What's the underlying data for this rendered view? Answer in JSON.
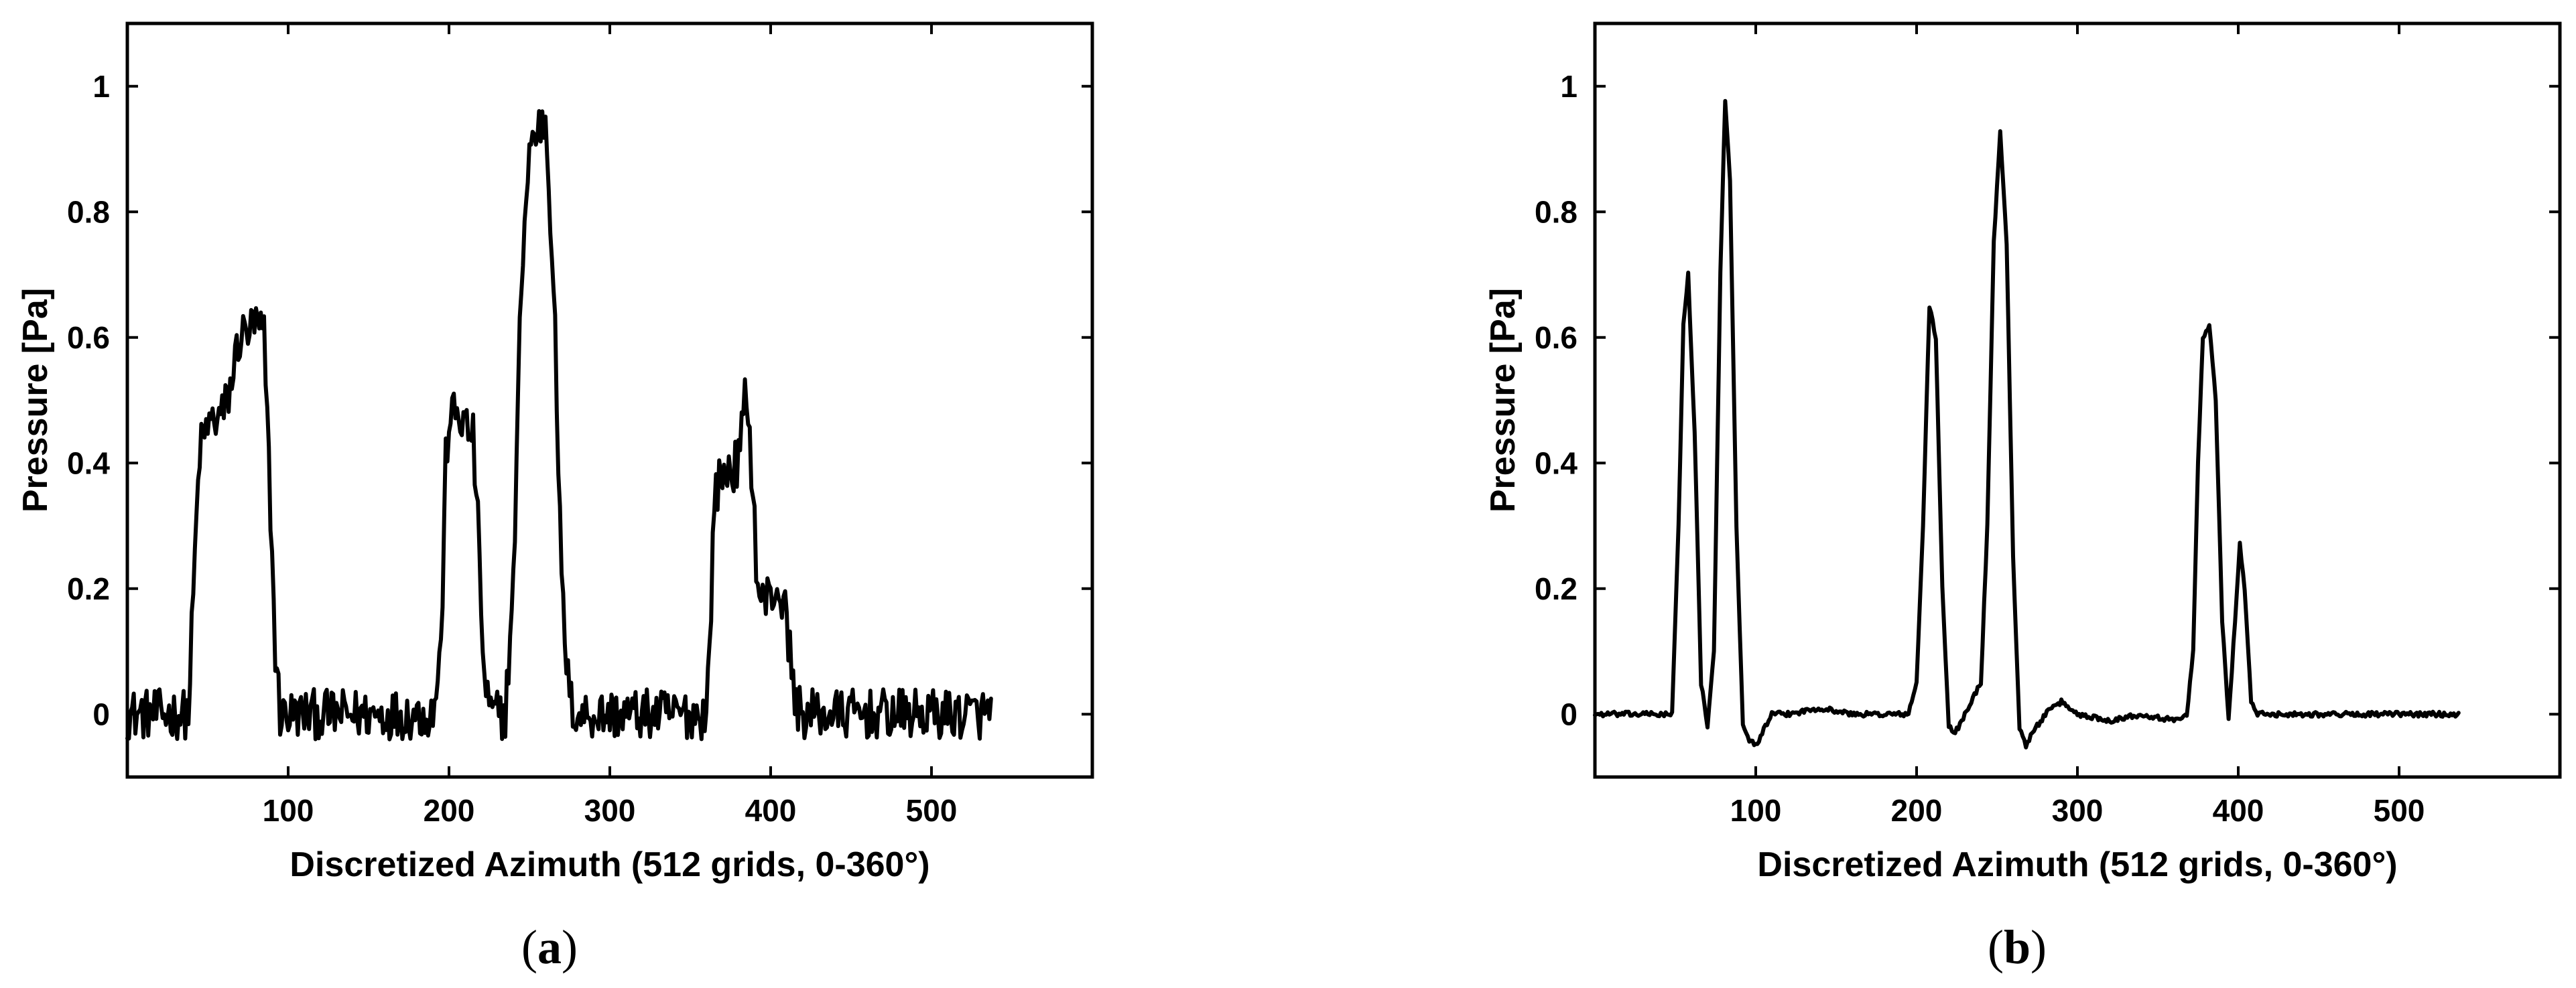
{
  "chart_data": [
    {
      "type": "line",
      "panel": "a",
      "xlabel": "Discretized Azimuth (512 grids, 0-360°)",
      "ylabel": "Pressure [Pa]",
      "xlim": [
        0,
        600
      ],
      "ylim": [
        -0.1,
        1.1
      ],
      "xticks": [
        100,
        200,
        300,
        400,
        500
      ],
      "yticks": [
        0,
        0.2,
        0.4,
        0.6,
        0.8,
        1
      ],
      "ytick_labels": [
        "0",
        "0.2",
        "0.4",
        "0.6",
        "0.8",
        "1"
      ],
      "grid": false,
      "noise": 0.04,
      "x": [
        0,
        10,
        20,
        30,
        38,
        42,
        45,
        50,
        55,
        60,
        65,
        68,
        70,
        75,
        80,
        85,
        88,
        92,
        95,
        100,
        120,
        140,
        160,
        180,
        190,
        195,
        198,
        200,
        205,
        210,
        215,
        218,
        222,
        226,
        235,
        240,
        245,
        250,
        255,
        260,
        265,
        270,
        275,
        280,
        300,
        320,
        340,
        360,
        362,
        365,
        370,
        375,
        380,
        385,
        388,
        392,
        395,
        400,
        405,
        410,
        415,
        420,
        450,
        480,
        510,
        537
      ],
      "y": [
        0.0,
        0.0,
        0.0,
        0.0,
        0.0,
        0.25,
        0.42,
        0.46,
        0.47,
        0.48,
        0.53,
        0.58,
        0.6,
        0.61,
        0.62,
        0.6,
        0.4,
        0.1,
        0.0,
        0.0,
        0.0,
        0.0,
        0.0,
        0.0,
        0.0,
        0.1,
        0.4,
        0.47,
        0.48,
        0.46,
        0.44,
        0.3,
        0.05,
        0.0,
        0.0,
        0.2,
        0.7,
        0.9,
        0.93,
        0.95,
        0.7,
        0.2,
        0.02,
        0.0,
        0.0,
        0.0,
        0.0,
        0.0,
        0.1,
        0.35,
        0.38,
        0.39,
        0.4,
        0.52,
        0.4,
        0.2,
        0.18,
        0.19,
        0.2,
        0.15,
        0.02,
        0.0,
        0.0,
        0.0,
        0.0,
        0.0
      ],
      "caption_letter": "a"
    },
    {
      "type": "line",
      "panel": "b",
      "xlabel": "Discretized Azimuth (512 grids, 0-360°)",
      "ylabel": "Pressure [Pa]",
      "xlim": [
        0,
        600
      ],
      "ylim": [
        -0.1,
        1.1
      ],
      "xticks": [
        100,
        200,
        300,
        400,
        500
      ],
      "yticks": [
        0,
        0.2,
        0.4,
        0.6,
        0.8,
        1
      ],
      "ytick_labels": [
        "0",
        "0.2",
        "0.4",
        "0.6",
        "0.8",
        "1"
      ],
      "grid": false,
      "noise": 0.004,
      "x": [
        0,
        20,
        40,
        48,
        52,
        55,
        58,
        62,
        66,
        70,
        74,
        78,
        81,
        84,
        88,
        92,
        96,
        100,
        110,
        120,
        140,
        160,
        180,
        195,
        200,
        204,
        208,
        212,
        216,
        220,
        224,
        230,
        240,
        244,
        248,
        252,
        256,
        260,
        264,
        268,
        272,
        280,
        290,
        300,
        320,
        340,
        360,
        368,
        372,
        375,
        378,
        382,
        386,
        390,
        394,
        398,
        401,
        404,
        408,
        412,
        420,
        440,
        460,
        480,
        500,
        520,
        537
      ],
      "y": [
        0.0,
        0.0,
        0.0,
        0.0,
        0.3,
        0.62,
        0.7,
        0.45,
        0.05,
        -0.02,
        0.1,
        0.7,
        0.98,
        0.85,
        0.3,
        -0.02,
        -0.04,
        -0.05,
        0.0,
        0.0,
        0.01,
        0.0,
        0.0,
        0.0,
        0.05,
        0.3,
        0.65,
        0.6,
        0.2,
        -0.02,
        -0.03,
        0.0,
        0.05,
        0.3,
        0.75,
        0.93,
        0.75,
        0.25,
        -0.02,
        -0.05,
        -0.03,
        0.0,
        0.02,
        0.0,
        -0.01,
        0.0,
        -0.01,
        0.0,
        0.1,
        0.4,
        0.6,
        0.62,
        0.5,
        0.15,
        -0.01,
        0.15,
        0.27,
        0.2,
        0.02,
        0.0,
        0.0,
        0.0,
        0.0,
        0.0,
        0.0,
        0.0,
        0.0
      ],
      "caption_letter": "b"
    }
  ]
}
